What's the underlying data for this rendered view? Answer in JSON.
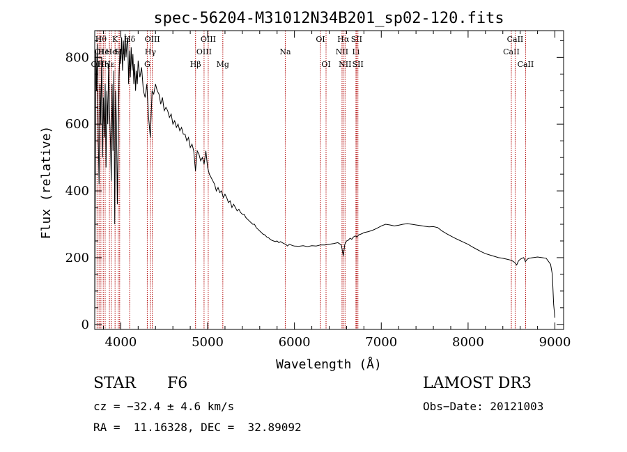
{
  "chart_data": {
    "type": "line",
    "title": "spec-56204-M31012N34B201_sp02-120.fits",
    "xlabel": "Wavelength (Å)",
    "ylabel": "Flux (relative)",
    "xlim": [
      3700,
      9100
    ],
    "ylim": [
      -15,
      880
    ],
    "xticks": [
      4000,
      5000,
      6000,
      7000,
      8000,
      9000
    ],
    "yticks": [
      0,
      200,
      400,
      600,
      800
    ],
    "series": [
      {
        "name": "spectrum",
        "points": [
          [
            3700,
            0
          ],
          [
            3705,
            330
          ],
          [
            3712,
            820
          ],
          [
            3720,
            700
          ],
          [
            3730,
            840
          ],
          [
            3740,
            560
          ],
          [
            3750,
            420
          ],
          [
            3760,
            720
          ],
          [
            3770,
            600
          ],
          [
            3780,
            800
          ],
          [
            3790,
            500
          ],
          [
            3800,
            680
          ],
          [
            3810,
            560
          ],
          [
            3820,
            720
          ],
          [
            3830,
            470
          ],
          [
            3840,
            700
          ],
          [
            3850,
            600
          ],
          [
            3860,
            780
          ],
          [
            3870,
            640
          ],
          [
            3880,
            560
          ],
          [
            3890,
            430
          ],
          [
            3900,
            720
          ],
          [
            3910,
            520
          ],
          [
            3920,
            760
          ],
          [
            3930,
            300
          ],
          [
            3940,
            700
          ],
          [
            3950,
            600
          ],
          [
            3960,
            360
          ],
          [
            3970,
            560
          ],
          [
            3980,
            740
          ],
          [
            3990,
            820
          ],
          [
            4000,
            780
          ],
          [
            4010,
            860
          ],
          [
            4020,
            760
          ],
          [
            4030,
            850
          ],
          [
            4040,
            790
          ],
          [
            4050,
            870
          ],
          [
            4060,
            800
          ],
          [
            4070,
            840
          ],
          [
            4080,
            860
          ],
          [
            4090,
            720
          ],
          [
            4100,
            820
          ],
          [
            4110,
            740
          ],
          [
            4120,
            830
          ],
          [
            4130,
            760
          ],
          [
            4140,
            810
          ],
          [
            4150,
            720
          ],
          [
            4160,
            780
          ],
          [
            4170,
            700
          ],
          [
            4180,
            760
          ],
          [
            4190,
            720
          ],
          [
            4200,
            790
          ],
          [
            4220,
            740
          ],
          [
            4240,
            770
          ],
          [
            4260,
            700
          ],
          [
            4280,
            680
          ],
          [
            4300,
            720
          ],
          [
            4320,
            620
          ],
          [
            4340,
            560
          ],
          [
            4360,
            700
          ],
          [
            4380,
            690
          ],
          [
            4400,
            720
          ],
          [
            4420,
            700
          ],
          [
            4440,
            690
          ],
          [
            4460,
            660
          ],
          [
            4480,
            680
          ],
          [
            4500,
            640
          ],
          [
            4520,
            650
          ],
          [
            4540,
            640
          ],
          [
            4560,
            620
          ],
          [
            4580,
            630
          ],
          [
            4600,
            600
          ],
          [
            4620,
            610
          ],
          [
            4640,
            590
          ],
          [
            4660,
            600
          ],
          [
            4680,
            580
          ],
          [
            4700,
            590
          ],
          [
            4720,
            570
          ],
          [
            4740,
            570
          ],
          [
            4760,
            550
          ],
          [
            4780,
            560
          ],
          [
            4800,
            530
          ],
          [
            4820,
            540
          ],
          [
            4840,
            520
          ],
          [
            4860,
            460
          ],
          [
            4880,
            520
          ],
          [
            4900,
            510
          ],
          [
            4920,
            490
          ],
          [
            4940,
            500
          ],
          [
            4960,
            480
          ],
          [
            4980,
            520
          ],
          [
            5000,
            470
          ],
          [
            5020,
            450
          ],
          [
            5040,
            440
          ],
          [
            5060,
            430
          ],
          [
            5080,
            420
          ],
          [
            5100,
            400
          ],
          [
            5120,
            410
          ],
          [
            5140,
            395
          ],
          [
            5160,
            400
          ],
          [
            5180,
            380
          ],
          [
            5200,
            390
          ],
          [
            5220,
            380
          ],
          [
            5240,
            365
          ],
          [
            5260,
            370
          ],
          [
            5280,
            350
          ],
          [
            5300,
            360
          ],
          [
            5320,
            350
          ],
          [
            5340,
            340
          ],
          [
            5360,
            345
          ],
          [
            5380,
            335
          ],
          [
            5400,
            330
          ],
          [
            5420,
            330
          ],
          [
            5440,
            320
          ],
          [
            5460,
            315
          ],
          [
            5480,
            310
          ],
          [
            5500,
            305
          ],
          [
            5520,
            300
          ],
          [
            5540,
            300
          ],
          [
            5560,
            290
          ],
          [
            5580,
            285
          ],
          [
            5600,
            280
          ],
          [
            5620,
            275
          ],
          [
            5640,
            270
          ],
          [
            5660,
            268
          ],
          [
            5680,
            262
          ],
          [
            5700,
            260
          ],
          [
            5720,
            255
          ],
          [
            5740,
            252
          ],
          [
            5760,
            250
          ],
          [
            5780,
            248
          ],
          [
            5800,
            250
          ],
          [
            5820,
            245
          ],
          [
            5840,
            248
          ],
          [
            5860,
            245
          ],
          [
            5880,
            242
          ],
          [
            5900,
            240
          ],
          [
            5920,
            235
          ],
          [
            5940,
            240
          ],
          [
            5960,
            238
          ],
          [
            5980,
            236
          ],
          [
            6000,
            235
          ],
          [
            6050,
            234
          ],
          [
            6100,
            236
          ],
          [
            6150,
            233
          ],
          [
            6200,
            236
          ],
          [
            6250,
            235
          ],
          [
            6300,
            238
          ],
          [
            6350,
            238
          ],
          [
            6400,
            240
          ],
          [
            6450,
            242
          ],
          [
            6500,
            245
          ],
          [
            6540,
            238
          ],
          [
            6563,
            205
          ],
          [
            6580,
            240
          ],
          [
            6600,
            250
          ],
          [
            6620,
            252
          ],
          [
            6640,
            258
          ],
          [
            6660,
            255
          ],
          [
            6680,
            262
          ],
          [
            6700,
            265
          ],
          [
            6720,
            262
          ],
          [
            6740,
            268
          ],
          [
            6760,
            270
          ],
          [
            6780,
            272
          ],
          [
            6800,
            275
          ],
          [
            6850,
            278
          ],
          [
            6900,
            282
          ],
          [
            6950,
            288
          ],
          [
            7000,
            295
          ],
          [
            7050,
            300
          ],
          [
            7100,
            298
          ],
          [
            7150,
            295
          ],
          [
            7200,
            297
          ],
          [
            7250,
            300
          ],
          [
            7300,
            302
          ],
          [
            7350,
            300
          ],
          [
            7400,
            298
          ],
          [
            7450,
            296
          ],
          [
            7500,
            294
          ],
          [
            7550,
            292
          ],
          [
            7600,
            293
          ],
          [
            7650,
            290
          ],
          [
            7700,
            280
          ],
          [
            7750,
            272
          ],
          [
            7800,
            265
          ],
          [
            7850,
            258
          ],
          [
            7900,
            252
          ],
          [
            7950,
            246
          ],
          [
            8000,
            240
          ],
          [
            8050,
            232
          ],
          [
            8100,
            225
          ],
          [
            8150,
            218
          ],
          [
            8200,
            212
          ],
          [
            8250,
            208
          ],
          [
            8300,
            204
          ],
          [
            8350,
            200
          ],
          [
            8400,
            198
          ],
          [
            8450,
            195
          ],
          [
            8500,
            192
          ],
          [
            8540,
            185
          ],
          [
            8560,
            178
          ],
          [
            8580,
            190
          ],
          [
            8600,
            195
          ],
          [
            8620,
            198
          ],
          [
            8640,
            200
          ],
          [
            8660,
            188
          ],
          [
            8680,
            195
          ],
          [
            8700,
            198
          ],
          [
            8750,
            200
          ],
          [
            8800,
            202
          ],
          [
            8850,
            200
          ],
          [
            8900,
            198
          ],
          [
            8950,
            180
          ],
          [
            8970,
            150
          ],
          [
            8985,
            60
          ],
          [
            9000,
            20
          ]
        ]
      }
    ],
    "line_markers": [
      {
        "wavelength": 3727,
        "label": "OII",
        "row": 2
      },
      {
        "wavelength": 3750,
        "label": "OI",
        "row": 1
      },
      {
        "wavelength": 3771,
        "label": "Hθ",
        "row": 0
      },
      {
        "wavelength": 3798,
        "label": "Hη",
        "row": 2
      },
      {
        "wavelength": 3820,
        "label": "HeI",
        "row": 1
      },
      {
        "wavelength": 3869,
        "label": "Hε",
        "row": 2
      },
      {
        "wavelength": 3889,
        "label": "He",
        "row": 1
      },
      {
        "wavelength": 3934,
        "label": "K",
        "row": 0
      },
      {
        "wavelength": 3970,
        "label": "H",
        "row": 1
      },
      {
        "wavelength": 3987,
        "label": "SII",
        "row": 1
      },
      {
        "wavelength": 4102,
        "label": "Hδ",
        "row": 0
      },
      {
        "wavelength": 4305,
        "label": "G",
        "row": 2
      },
      {
        "wavelength": 4341,
        "label": "Hγ",
        "row": 1
      },
      {
        "wavelength": 4363,
        "label": "OIII",
        "row": 0
      },
      {
        "wavelength": 4861,
        "label": "Hβ",
        "row": 2
      },
      {
        "wavelength": 4959,
        "label": "OIII",
        "row": 1
      },
      {
        "wavelength": 5007,
        "label": "OIII",
        "row": 0
      },
      {
        "wavelength": 5175,
        "label": "Mg",
        "row": 2
      },
      {
        "wavelength": 5894,
        "label": "Na",
        "row": 1
      },
      {
        "wavelength": 6300,
        "label": "OI",
        "row": 0
      },
      {
        "wavelength": 6364,
        "label": "OI",
        "row": 2
      },
      {
        "wavelength": 6548,
        "label": "NII",
        "row": 1
      },
      {
        "wavelength": 6563,
        "label": "Hα",
        "row": 0
      },
      {
        "wavelength": 6583,
        "label": "NII",
        "row": 2
      },
      {
        "wavelength": 6708,
        "label": "Li",
        "row": 1
      },
      {
        "wavelength": 6716,
        "label": "SII",
        "row": 0
      },
      {
        "wavelength": 6731,
        "label": "SII",
        "row": 2
      },
      {
        "wavelength": 8498,
        "label": "CaII",
        "row": 1
      },
      {
        "wavelength": 8542,
        "label": "CaII",
        "row": 0
      },
      {
        "wavelength": 8662,
        "label": "CaII",
        "row": 2
      }
    ]
  },
  "info": {
    "class": "STAR",
    "subclass": "F6",
    "survey": "LAMOST DR3",
    "redshift": "cz = −32.4 ± 4.6 km/s",
    "obs_date": "Obs−Date: 20121003",
    "coords": "RA =  11.16328, DEC =  32.89092"
  },
  "colors": {
    "spectrum": "#000000",
    "line_marker": "#b00000",
    "axis": "#000000",
    "background": "#ffffff"
  }
}
